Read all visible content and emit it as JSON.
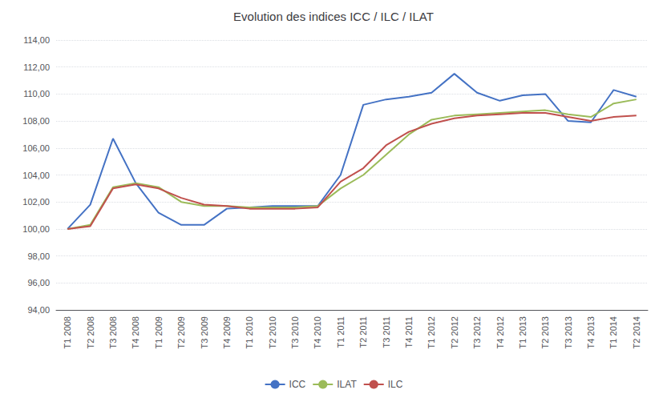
{
  "chart_data": {
    "type": "line",
    "title": "Evolution des indices ICC / ILC / ILAT",
    "categories": [
      "T1 2008",
      "T2 2008",
      "T3 2008",
      "T4 2008",
      "T1 2009",
      "T2 2009",
      "T3 2009",
      "T4 2009",
      "T1 2010",
      "T2 2010",
      "T3 2010",
      "T4 2010",
      "T1 2011",
      "T2 2011",
      "T3 2011",
      "T4 2011",
      "T1 2012",
      "T2 2012",
      "T3 2012",
      "T4 2012",
      "T1 2013",
      "T2 2013",
      "T3 2013",
      "T4 2013",
      "T1 2014",
      "T2 2014"
    ],
    "series": [
      {
        "name": "ICC",
        "color": "#4472C4",
        "values": [
          100.0,
          101.8,
          106.7,
          103.4,
          101.2,
          100.3,
          100.3,
          101.5,
          101.6,
          101.7,
          101.7,
          101.7,
          104.0,
          109.2,
          109.6,
          109.8,
          110.1,
          111.5,
          110.1,
          109.5,
          109.9,
          110.0,
          108.0,
          107.9,
          110.3,
          109.8
        ]
      },
      {
        "name": "ILAT",
        "color": "#9BBB59",
        "values": [
          100.0,
          100.3,
          103.1,
          103.4,
          103.1,
          102.0,
          101.7,
          101.7,
          101.6,
          101.6,
          101.6,
          101.7,
          103.0,
          104.0,
          105.5,
          107.0,
          108.1,
          108.4,
          108.5,
          108.6,
          108.7,
          108.8,
          108.5,
          108.3,
          109.3,
          109.6
        ]
      },
      {
        "name": "ILC",
        "color": "#C0504D",
        "values": [
          100.0,
          100.2,
          103.0,
          103.3,
          103.0,
          102.3,
          101.8,
          101.7,
          101.5,
          101.5,
          101.5,
          101.6,
          103.5,
          104.5,
          106.2,
          107.2,
          107.8,
          108.2,
          108.4,
          108.5,
          108.6,
          108.6,
          108.3,
          108.0,
          108.3,
          108.4
        ]
      }
    ],
    "ylim": [
      94,
      114
    ],
    "yticks": [
      {
        "value": 94,
        "label": "94,00"
      },
      {
        "value": 96,
        "label": "96,00"
      },
      {
        "value": 98,
        "label": "98,00"
      },
      {
        "value": 100,
        "label": "100,00"
      },
      {
        "value": 102,
        "label": "102,00"
      },
      {
        "value": 104,
        "label": "104,00"
      },
      {
        "value": 106,
        "label": "106,00"
      },
      {
        "value": 108,
        "label": "108,00"
      },
      {
        "value": 110,
        "label": "110,00"
      },
      {
        "value": 112,
        "label": "112,00"
      },
      {
        "value": 114,
        "label": "114,00"
      }
    ],
    "grid": true,
    "legend": "bottom"
  }
}
